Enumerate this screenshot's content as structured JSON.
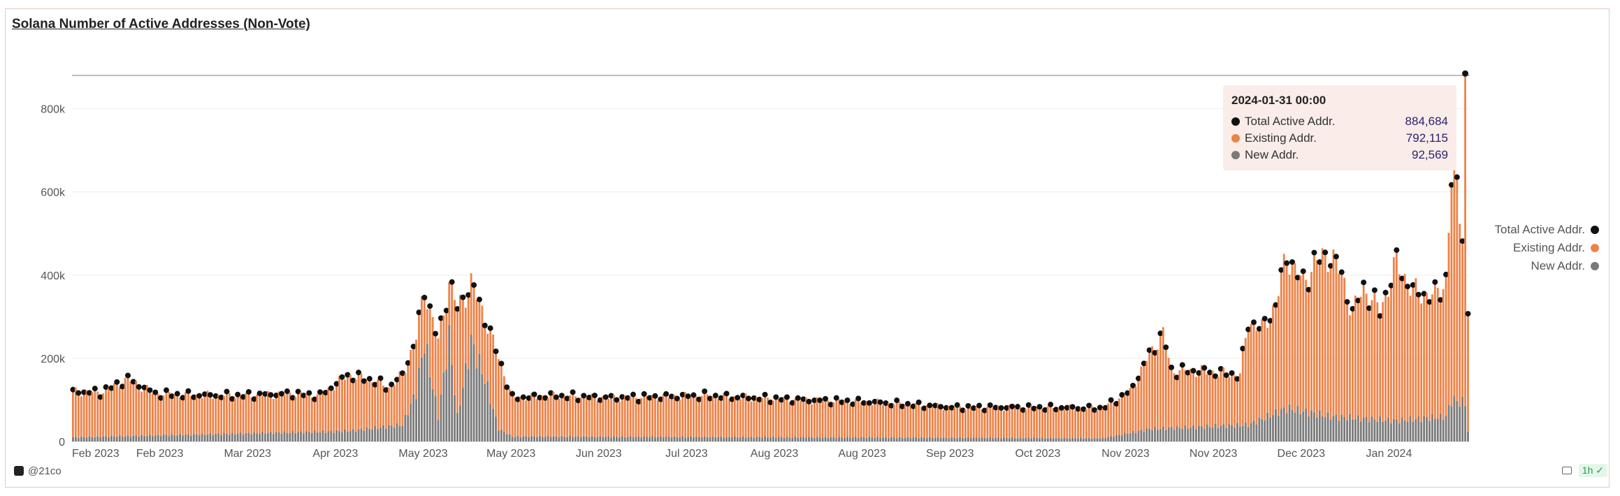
{
  "title": "Solana Number of Active Addresses (Non-Vote)",
  "colors": {
    "total": "#111111",
    "existing": "#ec8349",
    "new": "#7a7a7a"
  },
  "tooltip": {
    "date": "2024-01-31 00:00",
    "rows": [
      {
        "label": "Total Active Addr.",
        "value": "884,684",
        "color": "#111111"
      },
      {
        "label": "Existing Addr.",
        "value": "792,115",
        "color": "#ec8349"
      },
      {
        "label": "New Addr.",
        "value": "92,569",
        "color": "#7a7a7a"
      }
    ]
  },
  "legend": [
    {
      "label": "Total Active Addr.",
      "color": "#111111"
    },
    {
      "label": "Existing Addr.",
      "color": "#ec8349"
    },
    {
      "label": "New Addr.",
      "color": "#7a7a7a"
    }
  ],
  "footer": {
    "brand": "@21co",
    "interval": "1h"
  },
  "chart_data": {
    "type": "bar",
    "title": "Solana Number of Active Addresses (Non-Vote)",
    "x_start": "2023-02-01",
    "x_end": "2024-02-01",
    "ylim": [
      0,
      880000
    ],
    "y_ticks": [
      "0",
      "200k",
      "400k",
      "600k",
      "800k"
    ],
    "y_tick_values": [
      0,
      200000,
      400000,
      600000,
      800000
    ],
    "x_ticks": [
      "Feb 2023",
      "Feb 2023",
      "Mar 2023",
      "Apr 2023",
      "May 2023",
      "May 2023",
      "Jun 2023",
      "Jul 2023",
      "Aug 2023",
      "Aug 2023",
      "Sep 2023",
      "Oct 2023",
      "Nov 2023",
      "Nov 2023",
      "Dec 2023",
      "Jan 2024"
    ],
    "legend_position": "right",
    "stacked": true,
    "series": [
      {
        "name": "Total Active Addr.",
        "style": "dots",
        "keypoints": [
          [
            0,
            120000
          ],
          [
            10,
            118000
          ],
          [
            20,
            150000
          ],
          [
            30,
            115000
          ],
          [
            40,
            112000
          ],
          [
            60,
            110000
          ],
          [
            80,
            115000
          ],
          [
            90,
            110000
          ],
          [
            100,
            160000
          ],
          [
            110,
            145000
          ],
          [
            115,
            130000
          ],
          [
            120,
            160000
          ],
          [
            125,
            250000
          ],
          [
            128,
            370000
          ],
          [
            133,
            240000
          ],
          [
            137,
            385000
          ],
          [
            140,
            320000
          ],
          [
            145,
            380000
          ],
          [
            150,
            300000
          ],
          [
            155,
            200000
          ],
          [
            160,
            105000
          ],
          [
            175,
            110000
          ],
          [
            195,
            105000
          ],
          [
            230,
            110000
          ],
          [
            265,
            100000
          ],
          [
            290,
            95000
          ],
          [
            320,
            82000
          ],
          [
            345,
            82000
          ],
          [
            375,
            80000
          ],
          [
            380,
            100000
          ],
          [
            385,
            120000
          ],
          [
            392,
            210000
          ],
          [
            397,
            260000
          ],
          [
            400,
            170000
          ],
          [
            410,
            170000
          ],
          [
            425,
            160000
          ],
          [
            428,
            290000
          ],
          [
            433,
            270000
          ],
          [
            438,
            330000
          ],
          [
            442,
            450000
          ],
          [
            448,
            380000
          ],
          [
            452,
            430000
          ],
          [
            458,
            450000
          ],
          [
            462,
            400000
          ],
          [
            466,
            310000
          ],
          [
            470,
            370000
          ],
          [
            476,
            315000
          ],
          [
            482,
            430000
          ],
          [
            488,
            360000
          ],
          [
            496,
            350000
          ],
          [
            500,
            390000
          ],
          [
            502,
            630000
          ],
          [
            504,
            600000
          ],
          [
            506,
            520000
          ],
          [
            507,
            884684
          ],
          [
            508,
            300000
          ]
        ]
      },
      {
        "name": "Existing Addr.",
        "keypoints": [
          [
            0,
            110000
          ],
          [
            120,
            100000
          ],
          [
            128,
            120000
          ],
          [
            137,
            140000
          ],
          [
            150,
            140000
          ],
          [
            160,
            95000
          ],
          [
            265,
            90000
          ],
          [
            320,
            75000
          ],
          [
            375,
            72000
          ],
          [
            392,
            180000
          ],
          [
            400,
            150000
          ],
          [
            428,
            250000
          ],
          [
            442,
            370000
          ],
          [
            458,
            390000
          ],
          [
            482,
            380000
          ],
          [
            500,
            330000
          ],
          [
            502,
            530000
          ],
          [
            507,
            792115
          ],
          [
            508,
            270000
          ]
        ]
      },
      {
        "name": "New Addr.",
        "keypoints": [
          [
            0,
            10000
          ],
          [
            100,
            25000
          ],
          [
            120,
            40000
          ],
          [
            125,
            120000
          ],
          [
            128,
            240000
          ],
          [
            133,
            60000
          ],
          [
            137,
            250000
          ],
          [
            140,
            60000
          ],
          [
            145,
            240000
          ],
          [
            150,
            150000
          ],
          [
            155,
            30000
          ],
          [
            160,
            12000
          ],
          [
            265,
            10000
          ],
          [
            375,
            8000
          ],
          [
            392,
            30000
          ],
          [
            428,
            40000
          ],
          [
            442,
            80000
          ],
          [
            458,
            60000
          ],
          [
            482,
            50000
          ],
          [
            500,
            60000
          ],
          [
            502,
            100000
          ],
          [
            507,
            92569
          ],
          [
            508,
            25000
          ]
        ]
      }
    ]
  }
}
